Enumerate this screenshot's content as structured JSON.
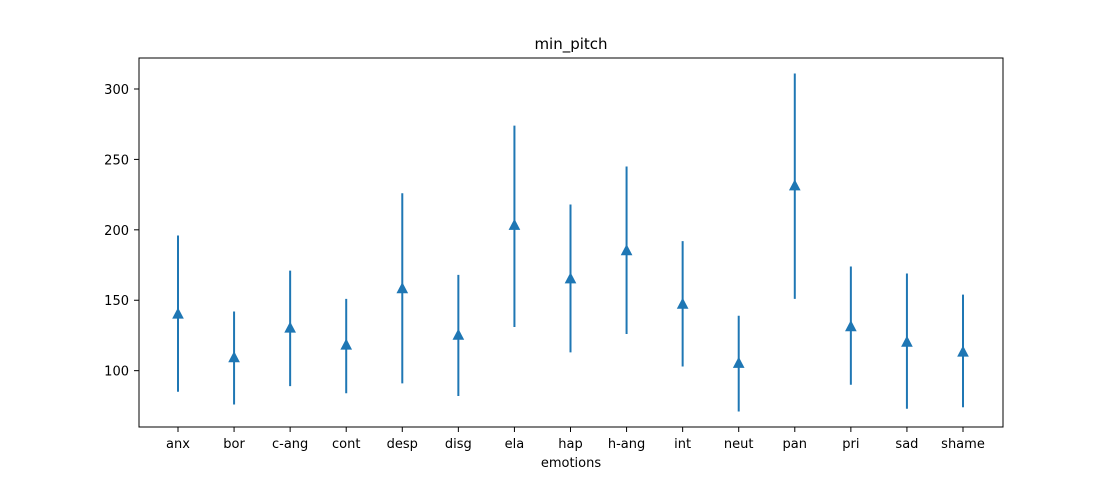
{
  "chart_data": {
    "type": "scatter",
    "title": "min_pitch",
    "xlabel": "emotions",
    "ylabel": "",
    "categories": [
      "anx",
      "bor",
      "c-ang",
      "cont",
      "desp",
      "disg",
      "ela",
      "hap",
      "h-ang",
      "int",
      "neut",
      "pan",
      "pri",
      "sad",
      "shame"
    ],
    "values": [
      140,
      109,
      130,
      118,
      158,
      125,
      203,
      165,
      185,
      147,
      105,
      231,
      131,
      120,
      113
    ],
    "err_low": [
      85,
      76,
      89,
      84,
      91,
      82,
      131,
      113,
      126,
      103,
      71,
      151,
      90,
      73,
      74
    ],
    "err_high": [
      196,
      142,
      171,
      151,
      226,
      168,
      274,
      218,
      245,
      192,
      139,
      311,
      174,
      169,
      154
    ],
    "yticks": [
      100,
      150,
      200,
      250,
      300
    ],
    "ylim": [
      60,
      322
    ],
    "marker": "triangle-up",
    "color": "#1f77b4",
    "grid": false,
    "legend": "none"
  }
}
